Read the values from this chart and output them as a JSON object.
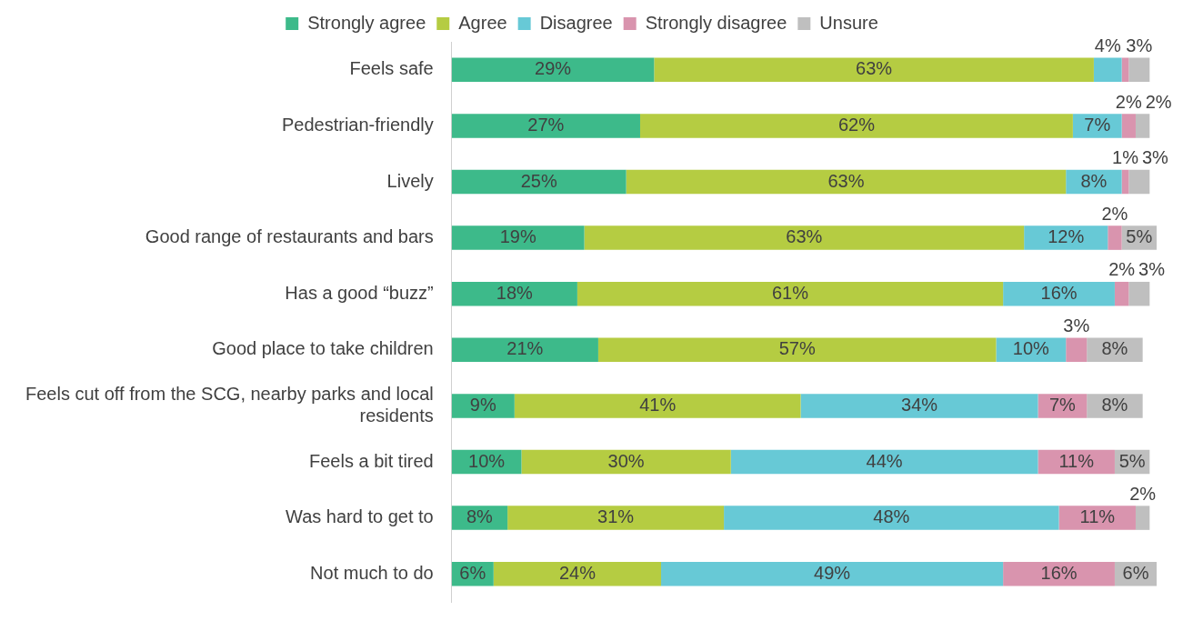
{
  "chart_data": {
    "type": "bar",
    "orientation": "horizontal",
    "stacked": true,
    "tick_labels": "y",
    "legend": "top",
    "grid": false,
    "categories": [
      "Feels safe",
      "Pedestrian-friendly",
      "Lively",
      "Good range of restaurants and bars",
      "Has a good “buzz”",
      "Good place to take children",
      "Feels cut off from the SCG, nearby parks and local residents",
      "Feels a bit tired",
      "Was hard to get to",
      "Not much to do"
    ],
    "series": [
      {
        "name": "Strongly agree",
        "color": "#3dba8a",
        "values": [
          29,
          27,
          25,
          19,
          18,
          21,
          9,
          10,
          8,
          6
        ],
        "value_labels": [
          "29%",
          "27%",
          "25%",
          "19%",
          "18%",
          "21%",
          "9%",
          "10%",
          "8%",
          "6%"
        ]
      },
      {
        "name": "Agree",
        "color": "#b5cc42",
        "values": [
          63,
          62,
          63,
          63,
          61,
          57,
          41,
          30,
          31,
          24
        ],
        "value_labels": [
          "63%",
          "62%",
          "63%",
          "63%",
          "61%",
          "57%",
          "41%",
          "30%",
          "31%",
          "24%"
        ]
      },
      {
        "name": "Disagree",
        "color": "#67c9d6",
        "values": [
          4,
          7,
          8,
          12,
          16,
          10,
          34,
          44,
          48,
          49
        ],
        "value_labels": [
          "4%",
          "7%",
          "8%",
          "12%",
          "16%",
          "10%",
          "34%",
          "44%",
          "48%",
          "49%"
        ]
      },
      {
        "name": "Strongly disagree",
        "color": "#d994ae",
        "values": [
          1,
          2,
          1,
          2,
          2,
          3,
          7,
          11,
          11,
          16
        ],
        "value_labels": [
          null,
          "2%",
          "1%",
          "2%",
          "2%",
          "3%",
          "7%",
          "11%",
          "11%",
          "16%"
        ]
      },
      {
        "name": "Unsure",
        "color": "#bfbfbf",
        "values": [
          3,
          2,
          3,
          5,
          3,
          8,
          8,
          5,
          2,
          6
        ],
        "value_labels": [
          "3%",
          "2%",
          "3%",
          "5%",
          "3%",
          "8%",
          "8%",
          "5%",
          "2%",
          "6%"
        ]
      }
    ]
  }
}
